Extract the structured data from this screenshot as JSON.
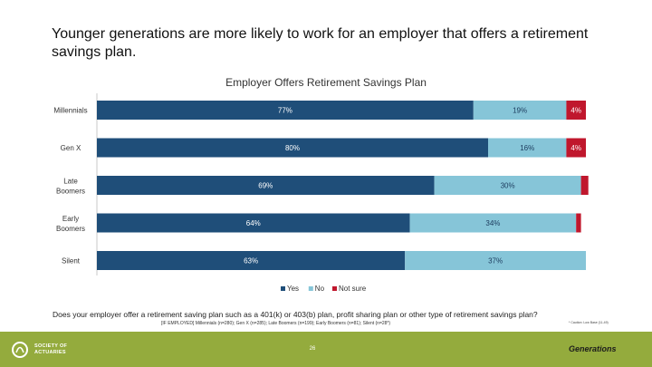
{
  "headline": "Younger generations are more likely to work for an employer that offers a retirement savings plan.",
  "chart_data": {
    "type": "bar",
    "orientation": "horizontal",
    "stacked": true,
    "title": "Employer Offers Retirement Savings Plan",
    "xlim": [
      0,
      100
    ],
    "categories": [
      "Millennials",
      "Gen X",
      "Late Boomers",
      "Early Boomers",
      "Silent"
    ],
    "series": [
      {
        "name": "Yes",
        "color": "#1f4e79",
        "values": [
          77,
          80,
          69,
          64,
          63
        ],
        "labels": [
          "77%",
          "80%",
          "69%",
          "64%",
          "63%"
        ]
      },
      {
        "name": "No",
        "color": "#86c5d8",
        "values": [
          19,
          16,
          30,
          34,
          37
        ],
        "labels": [
          "19%",
          "16%",
          "30%",
          "34%",
          "37%"
        ]
      },
      {
        "name": "Not sure",
        "color": "#c0172d",
        "values": [
          4,
          4,
          1.5,
          1,
          0
        ],
        "labels": [
          "4%",
          "4%",
          "",
          "",
          ""
        ]
      }
    ],
    "legend_position": "bottom"
  },
  "question": "Does your employer offer a retirement saving plan such as a 401(k) or 403(b) plan, profit sharing plan or other type of retirement savings plan?",
  "base_note": "[IF EMPLOYED] Millennials (n=280); Gen X (n=285); Late Boomers (n=199); Early Boomers (n=81); Silent (n=28*)",
  "footnote": "* Caution: Low Base (11-49)",
  "footer": {
    "logo_line1": "SOCIETY OF",
    "logo_line2": "ACTUARIES",
    "page_number": "26",
    "brand": "Generations"
  }
}
